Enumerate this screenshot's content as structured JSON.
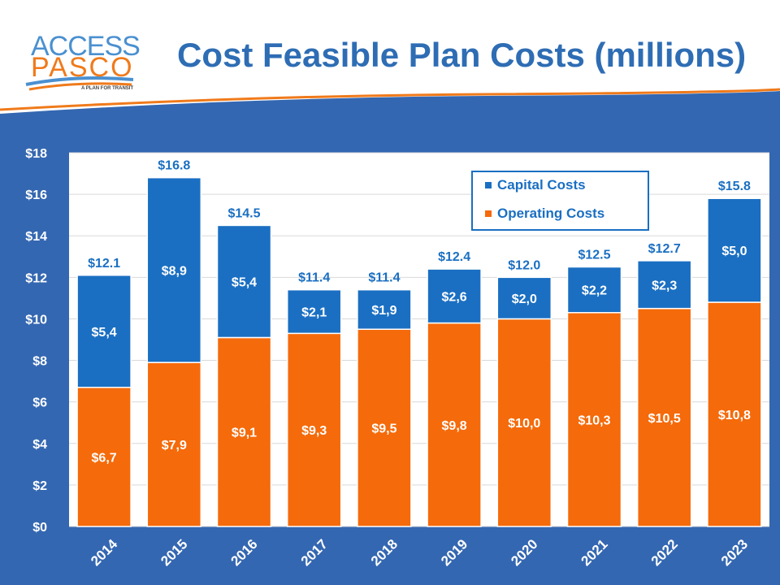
{
  "header": {
    "title": "Cost Feasible Plan Costs (millions)",
    "logo_line1": "ACCESS",
    "logo_line2": "PASCO",
    "logo_tagline": "A PLAN FOR TRANSIT"
  },
  "colors": {
    "background_blue": "#3467b1",
    "capital": "#1a6fc2",
    "operating": "#f56a0a",
    "title": "#2e6db4"
  },
  "chart_data": {
    "type": "bar",
    "stacked": true,
    "categories": [
      "2014",
      "2015",
      "2016",
      "2017",
      "2018",
      "2019",
      "2020",
      "2021",
      "2022",
      "2023"
    ],
    "series": [
      {
        "name": "Operating Costs",
        "values": [
          6.7,
          7.9,
          9.1,
          9.3,
          9.5,
          9.8,
          10.0,
          10.3,
          10.5,
          10.8
        ],
        "labels": [
          "$6,7",
          "$7,9",
          "$9,1",
          "$9,3",
          "$9,5",
          "$9,8",
          "$10,0",
          "$10,3",
          "$10,5",
          "$10,8"
        ],
        "color": "#f56a0a"
      },
      {
        "name": "Capital Costs",
        "values": [
          5.4,
          8.9,
          5.4,
          2.1,
          1.9,
          2.6,
          2.0,
          2.2,
          2.3,
          5.0
        ],
        "labels": [
          "$5,4",
          "$8,9",
          "$5,4",
          "$2,1",
          "$1,9",
          "$2,6",
          "$2,0",
          "$2,2",
          "$2,3",
          "$5,0"
        ],
        "color": "#1a6fc2"
      }
    ],
    "totals": [
      "$12.1",
      "$16.8",
      "$14.5",
      "$11.4",
      "$11.4",
      "$12.4",
      "$12.0",
      "$12.5",
      "$12.7",
      "$15.8"
    ],
    "y_ticks": [
      "$0",
      "$2",
      "$4",
      "$6",
      "$8",
      "$10",
      "$12",
      "$14",
      "$16",
      "$18"
    ],
    "ylim": [
      0,
      18
    ],
    "grid": true,
    "legend": {
      "position": "top-right",
      "entries": [
        "Capital Costs",
        "Operating Costs"
      ]
    }
  }
}
